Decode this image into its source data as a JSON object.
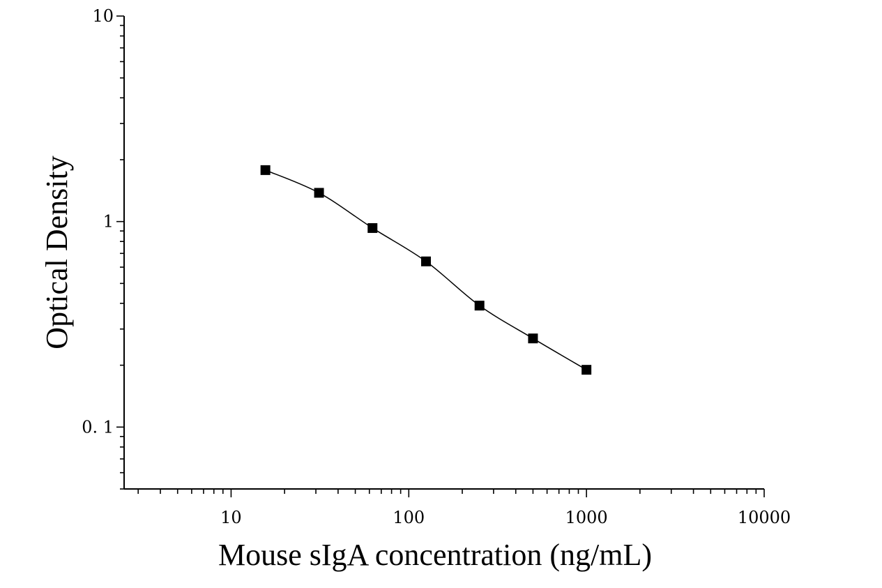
{
  "chart_data": {
    "type": "scatter",
    "title": "",
    "xlabel": "Mouse sIgA concentration (ng/mL)",
    "ylabel": "Optical Density",
    "xscale": "log",
    "yscale": "log",
    "xlim": [
      2.5,
      10000
    ],
    "ylim": [
      0.05,
      10
    ],
    "x_tick_labels": [
      "10",
      "100",
      "1000",
      "10000"
    ],
    "x_tick_values": [
      10,
      100,
      1000,
      10000
    ],
    "y_tick_labels": [
      "0. 1",
      "1",
      "10"
    ],
    "y_tick_values": [
      0.1,
      1,
      10
    ],
    "grid": false,
    "series": [
      {
        "x": [
          15.6,
          31.25,
          62.5,
          125,
          250,
          500,
          1000
        ],
        "y": [
          1.78,
          1.38,
          0.93,
          0.64,
          0.39,
          0.27,
          0.19
        ],
        "marker": "square",
        "fit_line": true
      }
    ],
    "colors": {
      "line": "#000000",
      "marker": "#000000",
      "axis": "#000000"
    }
  }
}
